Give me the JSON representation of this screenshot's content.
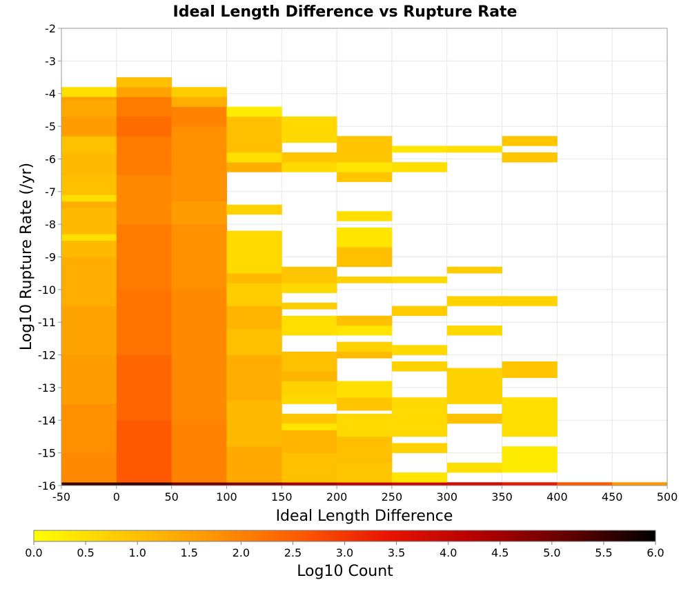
{
  "chart_data": {
    "type": "heatmap",
    "title": "Ideal Length Difference vs Rupture Rate",
    "xlabel": "Ideal Length Difference",
    "ylabel": "Log10 Rupture Rate (/yr)",
    "xlim": [
      -50,
      500
    ],
    "ylim": [
      -16,
      -2
    ],
    "x_ticks": [
      "-50",
      "0",
      "50",
      "100",
      "150",
      "200",
      "250",
      "300",
      "350",
      "400",
      "450",
      "500"
    ],
    "y_ticks": [
      "-2",
      "-3",
      "-4",
      "-5",
      "-6",
      "-7",
      "-8",
      "-9",
      "-10",
      "-11",
      "-12",
      "-13",
      "-14",
      "-15",
      "-16"
    ],
    "x_bin_width": 50,
    "y_bin_height": 0.1,
    "grid": true,
    "colorbar": {
      "label": "Log10 Count",
      "min": 0,
      "max": 6,
      "ticks": [
        "0.0",
        "0.5",
        "1.0",
        "1.5",
        "2.0",
        "2.5",
        "3.0",
        "3.5",
        "4.0",
        "4.5",
        "5.0",
        "5.5",
        "6.0"
      ],
      "colors": [
        "#ffff00",
        "#ffc800",
        "#ff9600",
        "#ff5a00",
        "#e61400",
        "#b40000",
        "#640000",
        "#000000"
      ]
    },
    "columns": [
      {
        "x": -50,
        "runs": [
          [
            -16.0,
            -15.9,
            5.5
          ],
          [
            -15.9,
            -15.0,
            1.9
          ],
          [
            -15.0,
            -13.5,
            1.8
          ],
          [
            -13.5,
            -12.0,
            1.6
          ],
          [
            -12.0,
            -10.5,
            1.5
          ],
          [
            -10.5,
            -9.0,
            1.3
          ],
          [
            -9.0,
            -8.5,
            1.1
          ],
          [
            -8.5,
            -8.3,
            0.5
          ],
          [
            -8.3,
            -7.5,
            1.1
          ],
          [
            -7.5,
            -7.3,
            1.3
          ],
          [
            -7.3,
            -7.1,
            0.5
          ],
          [
            -7.1,
            -6.5,
            1.0
          ],
          [
            -6.5,
            -5.8,
            1.1
          ],
          [
            -5.8,
            -5.3,
            1.0
          ],
          [
            -5.3,
            -4.7,
            1.6
          ],
          [
            -4.7,
            -4.2,
            1.4
          ],
          [
            -4.2,
            -4.1,
            1.6
          ],
          [
            -4.1,
            -3.8,
            0.5
          ]
        ]
      },
      {
        "x": 0,
        "runs": [
          [
            -16.0,
            -15.9,
            5.6
          ],
          [
            -15.9,
            -14.0,
            2.6
          ],
          [
            -14.0,
            -12.0,
            2.4
          ],
          [
            -12.0,
            -10.0,
            2.2
          ],
          [
            -10.0,
            -8.0,
            2.1
          ],
          [
            -8.0,
            -6.5,
            1.9
          ],
          [
            -6.5,
            -5.3,
            2.1
          ],
          [
            -5.3,
            -4.7,
            2.3
          ],
          [
            -4.7,
            -4.1,
            2.1
          ],
          [
            -4.1,
            -3.8,
            1.5
          ],
          [
            -3.8,
            -3.5,
            1.0
          ]
        ]
      },
      {
        "x": 50,
        "runs": [
          [
            -16.0,
            -15.9,
            5.0
          ],
          [
            -15.9,
            -14.0,
            2.0
          ],
          [
            -14.0,
            -10.0,
            1.9
          ],
          [
            -10.0,
            -8.0,
            1.8
          ],
          [
            -8.0,
            -7.3,
            1.6
          ],
          [
            -7.3,
            -5.0,
            1.8
          ],
          [
            -5.0,
            -4.4,
            2.0
          ],
          [
            -4.4,
            -4.1,
            1.3
          ],
          [
            -4.1,
            -3.8,
            0.8
          ]
        ]
      },
      {
        "x": 100,
        "runs": [
          [
            -16.0,
            -15.9,
            4.8
          ],
          [
            -15.9,
            -14.8,
            1.4
          ],
          [
            -14.8,
            -13.4,
            1.1
          ],
          [
            -13.4,
            -12.0,
            1.3
          ],
          [
            -12.0,
            -11.2,
            1.0
          ],
          [
            -11.2,
            -10.5,
            1.2
          ],
          [
            -10.5,
            -9.8,
            0.8
          ],
          [
            -9.8,
            -9.5,
            1.1
          ],
          [
            -9.5,
            -8.2,
            0.6
          ],
          [
            -7.7,
            -7.4,
            0.7
          ],
          [
            -6.4,
            -6.1,
            1.3
          ],
          [
            -6.1,
            -5.8,
            0.5
          ],
          [
            -5.8,
            -4.7,
            1.0
          ],
          [
            -4.7,
            -4.4,
            0.3
          ]
        ]
      },
      {
        "x": 150,
        "runs": [
          [
            -16.0,
            -15.9,
            4.5
          ],
          [
            -15.9,
            -15.0,
            1.0
          ],
          [
            -15.0,
            -14.3,
            1.2
          ],
          [
            -14.3,
            -14.1,
            0.4
          ],
          [
            -14.1,
            -13.8,
            0.9
          ],
          [
            -13.5,
            -13.2,
            0.6
          ],
          [
            -13.2,
            -12.8,
            0.7
          ],
          [
            -12.8,
            -12.5,
            1.2
          ],
          [
            -12.5,
            -11.9,
            1.0
          ],
          [
            -11.4,
            -10.8,
            0.5
          ],
          [
            -10.6,
            -10.4,
            0.8
          ],
          [
            -10.1,
            -9.8,
            0.6
          ],
          [
            -9.8,
            -9.3,
            0.9
          ],
          [
            -6.4,
            -6.1,
            0.6
          ],
          [
            -6.1,
            -5.8,
            0.9
          ],
          [
            -5.5,
            -4.7,
            0.6
          ]
        ]
      },
      {
        "x": 200,
        "runs": [
          [
            -16.0,
            -15.9,
            4.2
          ],
          [
            -15.9,
            -15.3,
            0.9
          ],
          [
            -15.3,
            -14.5,
            1.0
          ],
          [
            -14.5,
            -13.8,
            0.6
          ],
          [
            -13.7,
            -13.3,
            0.9
          ],
          [
            -13.3,
            -12.8,
            0.5
          ],
          [
            -12.1,
            -11.9,
            1.1
          ],
          [
            -11.9,
            -11.6,
            0.7
          ],
          [
            -11.4,
            -11.1,
            0.4
          ],
          [
            -11.1,
            -10.8,
            1.0
          ],
          [
            -9.8,
            -9.6,
            0.7
          ],
          [
            -9.3,
            -8.7,
            1.0
          ],
          [
            -8.7,
            -8.1,
            0.4
          ],
          [
            -7.9,
            -7.6,
            0.5
          ],
          [
            -6.7,
            -6.4,
            0.9
          ],
          [
            -6.4,
            -6.1,
            0.4
          ],
          [
            -6.1,
            -5.3,
            0.9
          ]
        ]
      },
      {
        "x": 250,
        "runs": [
          [
            -16.0,
            -15.9,
            4.0
          ],
          [
            -15.9,
            -15.6,
            0.4
          ],
          [
            -15.0,
            -14.7,
            0.7
          ],
          [
            -14.5,
            -13.3,
            0.6
          ],
          [
            -12.5,
            -12.2,
            0.7
          ],
          [
            -12.0,
            -11.7,
            0.6
          ],
          [
            -10.8,
            -10.5,
            0.8
          ],
          [
            -9.8,
            -9.6,
            0.6
          ],
          [
            -6.4,
            -6.1,
            0.5
          ],
          [
            -5.8,
            -5.6,
            0.4
          ]
        ]
      },
      {
        "x": 300,
        "runs": [
          [
            -16.0,
            -15.9,
            3.8
          ],
          [
            -15.6,
            -15.3,
            0.5
          ],
          [
            -14.1,
            -13.8,
            1.0
          ],
          [
            -13.5,
            -12.4,
            0.7
          ],
          [
            -11.4,
            -11.1,
            0.6
          ],
          [
            -10.5,
            -10.2,
            0.7
          ],
          [
            -9.5,
            -9.3,
            0.8
          ],
          [
            -5.8,
            -5.6,
            0.5
          ]
        ]
      },
      {
        "x": 350,
        "runs": [
          [
            -16.0,
            -15.9,
            3.4
          ],
          [
            -15.6,
            -14.8,
            0.3
          ],
          [
            -14.5,
            -13.3,
            0.5
          ],
          [
            -12.7,
            -12.2,
            0.9
          ],
          [
            -10.5,
            -10.2,
            0.7
          ],
          [
            -6.1,
            -5.8,
            0.9
          ],
          [
            -5.6,
            -5.3,
            0.9
          ]
        ]
      },
      {
        "x": 400,
        "runs": [
          [
            -16.0,
            -15.9,
            2.6
          ]
        ]
      },
      {
        "x": 450,
        "runs": [
          [
            -16.0,
            -15.9,
            1.7
          ]
        ]
      }
    ]
  }
}
